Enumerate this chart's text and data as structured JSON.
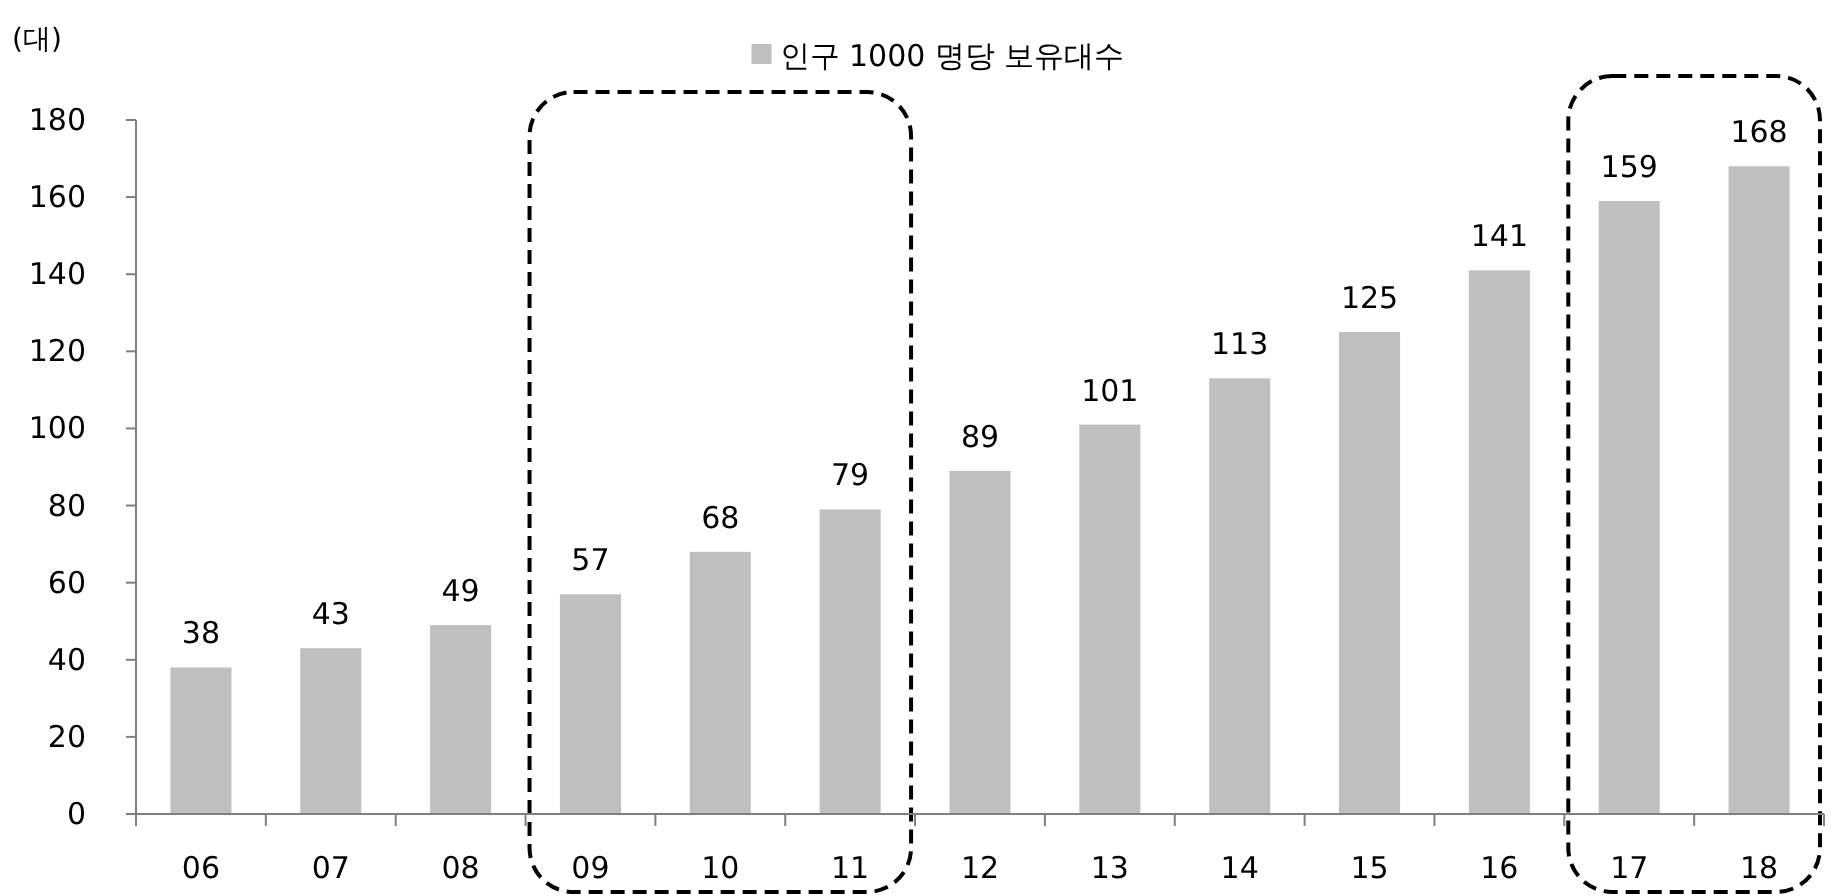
{
  "chart_data": {
    "type": "bar",
    "ylabel": "(대)",
    "categories": [
      "06",
      "07",
      "08",
      "09",
      "10",
      "11",
      "12",
      "13",
      "14",
      "15",
      "16",
      "17",
      "18"
    ],
    "series": [
      {
        "name": "인구 1000 명당 보유대수",
        "color": "#bfbfbf",
        "values": [
          38,
          43,
          49,
          57,
          68,
          79,
          89,
          101,
          113,
          125,
          141,
          159,
          168
        ]
      }
    ],
    "ylim": [
      0,
      180
    ],
    "yticks": [
      0,
      20,
      40,
      60,
      80,
      100,
      120,
      140,
      160,
      180
    ],
    "data_labels": true,
    "legend": "top",
    "grid": false
  }
}
